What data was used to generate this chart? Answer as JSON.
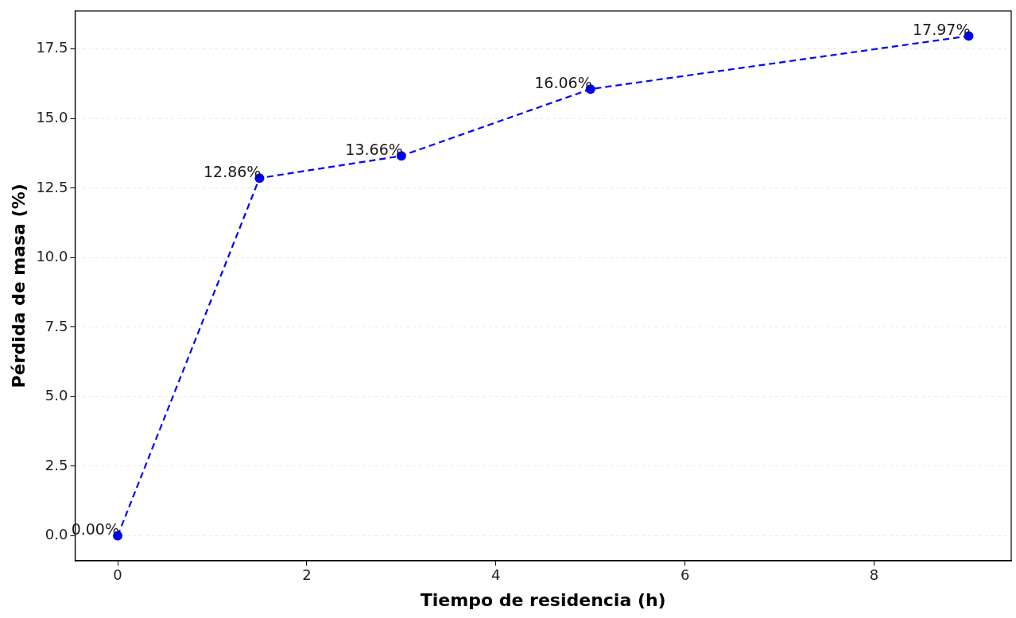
{
  "chart_data": {
    "type": "line",
    "xlabel": "Tiempo de residencia (h)",
    "ylabel": "Pérdida de masa (%)",
    "x": [
      0,
      1.5,
      3,
      5,
      9
    ],
    "series": [
      {
        "color": "#0000ff",
        "values": [
          0,
          12.86,
          13.66,
          16.06,
          17.97
        ],
        "value_labels": [
          "0.00%",
          "12.86%",
          "13.66%",
          "16.06%",
          "17.97%"
        ]
      }
    ],
    "xlim": [
      -0.45,
      9.45
    ],
    "xticks": [
      0,
      2,
      4,
      6,
      8
    ],
    "ylim": [
      -0.9,
      18.87
    ],
    "yticks": [
      {
        "value": 0,
        "label": "0.0"
      },
      {
        "value": 2.5,
        "label": "2.5"
      },
      {
        "value": 5,
        "label": "5.0"
      },
      {
        "value": 7.5,
        "label": "7.5"
      },
      {
        "value": 10,
        "label": "10.0"
      },
      {
        "value": 12.5,
        "label": "12.5"
      },
      {
        "value": 15,
        "label": "15.0"
      },
      {
        "value": 17.5,
        "label": "17.5"
      }
    ],
    "grid": "y",
    "legend": false,
    "marker": "circle",
    "line_style": "dashed"
  }
}
